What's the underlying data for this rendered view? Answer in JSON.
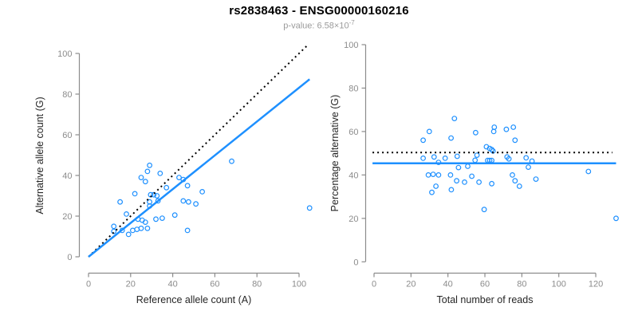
{
  "header": {
    "title": "rs2838463 - ENSG00000160216",
    "subtitle_prefix": "p-value: 6.58×10",
    "subtitle_exponent": "-7"
  },
  "colors": {
    "points": "#1e90ff",
    "fit_line": "#1e90ff",
    "reference_line": "#000000",
    "axis": "#8c8c8c",
    "tick_label": "#8c8c8c",
    "axis_title": "#262626",
    "title": "#000000",
    "subtitle": "#9b9b9b"
  },
  "chart_data": [
    {
      "type": "scatter",
      "xlabel": "Reference allele count (A)",
      "ylabel": "Alternative allele count (G)",
      "xticks": [
        0,
        20,
        40,
        60,
        80,
        100
      ],
      "yticks": [
        0,
        20,
        40,
        60,
        80,
        100
      ],
      "xlim": [
        0,
        105
      ],
      "ylim": [
        0,
        105
      ],
      "grid": false,
      "legend": null,
      "points": [
        [
          29,
          45
        ],
        [
          28,
          42
        ],
        [
          34,
          41
        ],
        [
          25,
          39
        ],
        [
          27,
          37
        ],
        [
          43,
          39
        ],
        [
          45,
          38
        ],
        [
          47,
          35
        ],
        [
          37,
          34
        ],
        [
          22,
          31
        ],
        [
          54,
          32
        ],
        [
          29.5,
          30.5
        ],
        [
          31,
          30.5
        ],
        [
          32.5,
          30
        ],
        [
          15,
          27
        ],
        [
          29,
          27
        ],
        [
          29,
          25
        ],
        [
          33,
          27.5
        ],
        [
          45,
          27.5
        ],
        [
          47.5,
          27
        ],
        [
          51,
          26
        ],
        [
          18,
          21
        ],
        [
          41,
          20.5
        ],
        [
          23.5,
          18.5
        ],
        [
          25.5,
          18
        ],
        [
          27,
          17
        ],
        [
          32,
          18.5
        ],
        [
          35,
          19
        ],
        [
          12,
          15
        ],
        [
          12,
          12.5
        ],
        [
          25,
          14
        ],
        [
          28,
          14
        ],
        [
          16,
          13
        ],
        [
          21,
          13
        ],
        [
          23,
          13.5
        ],
        [
          19,
          11
        ],
        [
          47,
          13
        ],
        [
          68,
          47
        ],
        [
          105,
          24
        ]
      ],
      "lines": [
        {
          "style": "dotted",
          "color": "#000000",
          "x1": 0,
          "y1": 0,
          "x2": 104.5,
          "y2": 104.5
        },
        {
          "style": "solid",
          "color": "#1e90ff",
          "x1": 0,
          "y1": 0,
          "x2": 105,
          "y2": 87.3
        }
      ]
    },
    {
      "type": "scatter",
      "xlabel": "Total number of reads",
      "ylabel": "Percentage alternative (G)",
      "xticks": [
        0,
        20,
        40,
        60,
        80,
        100,
        120
      ],
      "yticks": [
        0,
        20,
        40,
        60,
        80,
        100
      ],
      "xlim": [
        0,
        131
      ],
      "ylim": [
        0,
        100
      ],
      "grid": false,
      "legend": null,
      "points": [
        [
          43.5,
          66
        ],
        [
          29.9,
          60
        ],
        [
          55,
          59.5
        ],
        [
          64.8,
          60
        ],
        [
          65.1,
          62
        ],
        [
          71.6,
          61
        ],
        [
          75.4,
          62
        ],
        [
          26.6,
          56
        ],
        [
          41.7,
          57
        ],
        [
          76.3,
          56
        ],
        [
          60.8,
          53
        ],
        [
          62.6,
          52.2
        ],
        [
          63.7,
          51.7
        ],
        [
          64.4,
          51
        ],
        [
          26.6,
          47.7
        ],
        [
          32.5,
          48.3
        ],
        [
          38.5,
          47.7
        ],
        [
          45,
          48.6
        ],
        [
          55.7,
          49.1
        ],
        [
          54.7,
          46.8
        ],
        [
          61.5,
          46.7
        ],
        [
          62.6,
          46.7
        ],
        [
          63.7,
          46.7
        ],
        [
          72,
          48.3
        ],
        [
          73,
          47.4
        ],
        [
          82.3,
          47.9
        ],
        [
          85.5,
          46.4
        ],
        [
          34.9,
          45.8
        ],
        [
          45.7,
          43.4
        ],
        [
          50.7,
          44
        ],
        [
          83.5,
          43.6
        ],
        [
          29.4,
          40
        ],
        [
          32,
          40.3
        ],
        [
          34.9,
          40
        ],
        [
          41.4,
          40
        ],
        [
          52.9,
          39.4
        ],
        [
          74.9,
          40
        ],
        [
          44.7,
          37.3
        ],
        [
          49,
          36.7
        ],
        [
          56.8,
          36.7
        ],
        [
          63.7,
          36
        ],
        [
          76.3,
          37.3
        ],
        [
          87.6,
          38.1
        ],
        [
          33.5,
          34.8
        ],
        [
          41.8,
          33.2
        ],
        [
          78.7,
          34.8
        ],
        [
          31.3,
          32
        ],
        [
          59.6,
          24.1
        ],
        [
          116,
          41.6
        ],
        [
          131,
          20
        ]
      ],
      "lines": [
        {
          "style": "dotted",
          "color": "#000000",
          "x1": -0.8,
          "y1": 50.3,
          "x2": 129,
          "y2": 50.3
        },
        {
          "style": "solid",
          "color": "#1e90ff",
          "x1": -0.8,
          "y1": 45.4,
          "x2": 131,
          "y2": 45.4
        }
      ]
    }
  ]
}
